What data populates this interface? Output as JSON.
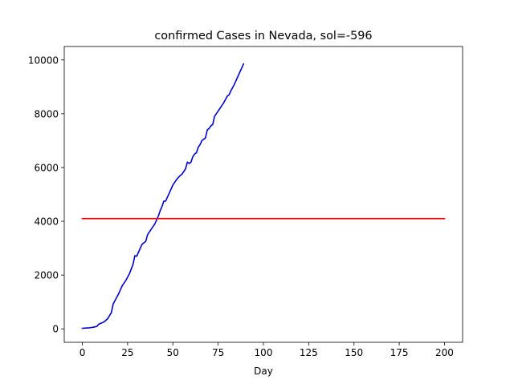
{
  "chart_data": {
    "type": "line",
    "title": "confirmed Cases in Nevada, sol=-596",
    "xlabel": "Day",
    "ylabel": "",
    "xlim": [
      -10,
      210
    ],
    "ylim": [
      -500,
      10500
    ],
    "xticks": [
      0,
      25,
      50,
      75,
      100,
      125,
      150,
      175,
      200
    ],
    "yticks": [
      0,
      2000,
      4000,
      6000,
      8000,
      10000
    ],
    "grid": false,
    "legend": "none",
    "series": [
      {
        "color": "#0000cc",
        "x": [
          0,
          2,
          4,
          6,
          8,
          9,
          10,
          12,
          14,
          16,
          17,
          18,
          20,
          21,
          22,
          23,
          24,
          26,
          28,
          29,
          30,
          31,
          32,
          33,
          34,
          35,
          36,
          37,
          38,
          40,
          42,
          43,
          44,
          45,
          46,
          47,
          48,
          50,
          51,
          52,
          54,
          55,
          56,
          57,
          58,
          59,
          60,
          61,
          62,
          63,
          64,
          65,
          66,
          67,
          68,
          69,
          70,
          71,
          72,
          73,
          74,
          76,
          78,
          80,
          81,
          82,
          84,
          86,
          88,
          89
        ],
        "y": [
          20,
          30,
          40,
          60,
          90,
          170,
          200,
          260,
          380,
          600,
          920,
          1050,
          1300,
          1450,
          1600,
          1700,
          1800,
          2050,
          2400,
          2720,
          2700,
          2850,
          3000,
          3150,
          3200,
          3250,
          3500,
          3600,
          3700,
          3900,
          4200,
          4400,
          4550,
          4750,
          4750,
          4900,
          5050,
          5350,
          5450,
          5550,
          5700,
          5750,
          5850,
          5950,
          6200,
          6150,
          6200,
          6400,
          6500,
          6550,
          6750,
          6850,
          7000,
          7050,
          7100,
          7400,
          7450,
          7550,
          7600,
          7900,
          8000,
          8200,
          8400,
          8650,
          8700,
          8850,
          9100,
          9400,
          9700,
          9850
        ]
      },
      {
        "color": "#ff0000",
        "x": [
          0,
          200
        ],
        "y": [
          4100,
          4100
        ]
      }
    ]
  }
}
